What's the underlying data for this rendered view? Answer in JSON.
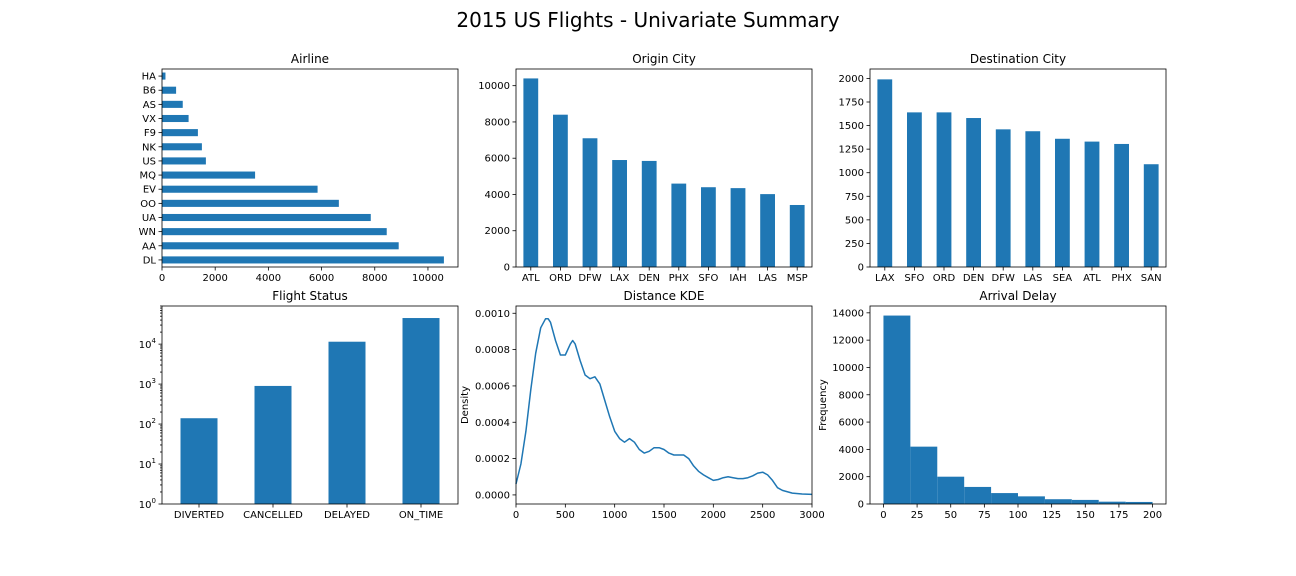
{
  "figure": {
    "title": "2015 US Flights - Univariate Summary"
  },
  "chart_data": [
    {
      "type": "bar",
      "orientation": "horizontal",
      "title": "Airline",
      "xlabel": "",
      "ylabel": "",
      "categories": [
        "DL",
        "AA",
        "WN",
        "UA",
        "OO",
        "EV",
        "MQ",
        "US",
        "NK",
        "F9",
        "VX",
        "AS",
        "B6",
        "HA"
      ],
      "values": [
        10600,
        8900,
        8450,
        7850,
        6650,
        5850,
        3500,
        1650,
        1500,
        1350,
        1000,
        780,
        530,
        130
      ],
      "xlim": [
        0,
        11130
      ],
      "xticks": [
        0,
        2000,
        4000,
        6000,
        8000,
        10000
      ],
      "color": "#1f77b4"
    },
    {
      "type": "bar",
      "title": "Origin City",
      "xlabel": "",
      "ylabel": "",
      "categories": [
        "ATL",
        "ORD",
        "DFW",
        "LAX",
        "DEN",
        "PHX",
        "SFO",
        "IAH",
        "LAS",
        "MSP"
      ],
      "values": [
        10400,
        8400,
        7100,
        5900,
        5850,
        4600,
        4400,
        4350,
        4020,
        3420
      ],
      "ylim": [
        0,
        10920
      ],
      "yticks": [
        0,
        2000,
        4000,
        6000,
        8000,
        10000
      ],
      "color": "#1f77b4"
    },
    {
      "type": "bar",
      "title": "Destination City",
      "xlabel": "",
      "ylabel": "",
      "categories": [
        "LAX",
        "SFO",
        "ORD",
        "DEN",
        "DFW",
        "LAS",
        "SEA",
        "ATL",
        "PHX",
        "SAN"
      ],
      "values": [
        1990,
        1640,
        1640,
        1580,
        1460,
        1440,
        1360,
        1330,
        1305,
        1090
      ],
      "ylim": [
        0,
        2100
      ],
      "yticks": [
        0,
        250,
        500,
        750,
        1000,
        1250,
        1500,
        1750,
        2000
      ],
      "color": "#1f77b4"
    },
    {
      "type": "bar",
      "title": "Flight Status",
      "xlabel": "",
      "ylabel": "",
      "yscale": "log",
      "categories": [
        "DIVERTED",
        "CANCELLED",
        "DELAYED",
        "ON_TIME"
      ],
      "values": [
        140,
        900,
        11500,
        45000
      ],
      "ylim": [
        1,
        90000
      ],
      "yticks": [
        1,
        10,
        100,
        1000,
        10000
      ],
      "ytick_labels": [
        {
          "base": "10",
          "exp": "0"
        },
        {
          "base": "10",
          "exp": "1"
        },
        {
          "base": "10",
          "exp": "2"
        },
        {
          "base": "10",
          "exp": "3"
        },
        {
          "base": "10",
          "exp": "4"
        }
      ],
      "color": "#1f77b4"
    },
    {
      "type": "line",
      "title": "Distance KDE",
      "xlabel": "",
      "ylabel": "Density",
      "x": [
        0,
        50,
        100,
        150,
        200,
        250,
        300,
        325,
        350,
        400,
        450,
        500,
        550,
        575,
        600,
        650,
        700,
        750,
        800,
        850,
        900,
        950,
        1000,
        1050,
        1100,
        1150,
        1200,
        1250,
        1300,
        1350,
        1400,
        1450,
        1500,
        1550,
        1600,
        1650,
        1700,
        1750,
        1800,
        1850,
        1900,
        1950,
        2000,
        2050,
        2100,
        2150,
        2200,
        2250,
        2300,
        2350,
        2400,
        2450,
        2500,
        2550,
        2600,
        2650,
        2700,
        2800,
        2900,
        3000
      ],
      "series": [
        {
          "values": [
            6e-05,
            0.00017,
            0.00035,
            0.00058,
            0.00078,
            0.00092,
            0.00097,
            0.00097,
            0.00095,
            0.00085,
            0.00077,
            0.00077,
            0.00083,
            0.00085,
            0.00083,
            0.00074,
            0.00066,
            0.00064,
            0.00065,
            0.00061,
            0.00052,
            0.00043,
            0.00035,
            0.00031,
            0.00029,
            0.00031,
            0.00029,
            0.00025,
            0.00023,
            0.00024,
            0.00026,
            0.00026,
            0.00025,
            0.00023,
            0.00022,
            0.00022,
            0.00022,
            0.0002,
            0.00016,
            0.00013,
            0.00011,
            9.5e-05,
            8e-05,
            8.5e-05,
            9.5e-05,
            0.0001,
            9.5e-05,
            9e-05,
            9e-05,
            9.5e-05,
            0.000105,
            0.00012,
            0.000125,
            0.00011,
            8e-05,
            4e-05,
            2.5e-05,
            1e-05,
            5e-06,
            3e-06
          ]
        }
      ],
      "xlim": [
        0,
        3000
      ],
      "ylim": [
        -5e-05,
        0.00104
      ],
      "xticks": [
        0,
        500,
        1000,
        1500,
        2000,
        2500,
        3000
      ],
      "yticks": [
        0,
        0.0002,
        0.0004,
        0.0006,
        0.0008,
        0.001
      ],
      "ytick_labels": [
        "0.0000",
        "0.0002",
        "0.0004",
        "0.0006",
        "0.0008",
        "0.0010"
      ],
      "color": "#1f77b4"
    },
    {
      "type": "bar",
      "subtype": "histogram",
      "title": "Arrival Delay",
      "xlabel": "",
      "ylabel": "Frequency",
      "bin_edges": [
        0,
        20,
        40,
        60,
        80,
        100,
        120,
        140,
        160,
        180,
        200
      ],
      "values": [
        13800,
        4200,
        2000,
        1250,
        800,
        560,
        350,
        300,
        170,
        150
      ],
      "xlim": [
        -10,
        210
      ],
      "ylim": [
        0,
        14500
      ],
      "xticks": [
        0,
        25,
        50,
        75,
        100,
        125,
        150,
        175,
        200
      ],
      "yticks": [
        0,
        2000,
        4000,
        6000,
        8000,
        10000,
        12000,
        14000
      ],
      "color": "#1f77b4"
    }
  ]
}
